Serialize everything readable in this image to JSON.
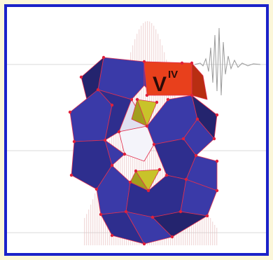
{
  "figure": {
    "label_main": "V",
    "label_sup": "IV"
  },
  "colors": {
    "frame_border": "#1b22c9",
    "page_background": "#fbf6d9",
    "octahedron_fill": "#3a3aa8",
    "octahedron_dark": "#24246e",
    "vanadium_highlight": "#e8401c",
    "tetrahedron_fill": "#c8c32a",
    "oxygen_dots": "#e0203a",
    "background_spectrum": "#e8c0c0",
    "background_signal": "#9a9a9a"
  },
  "icons": [
    "polyoxometalate-cluster-illustration"
  ]
}
